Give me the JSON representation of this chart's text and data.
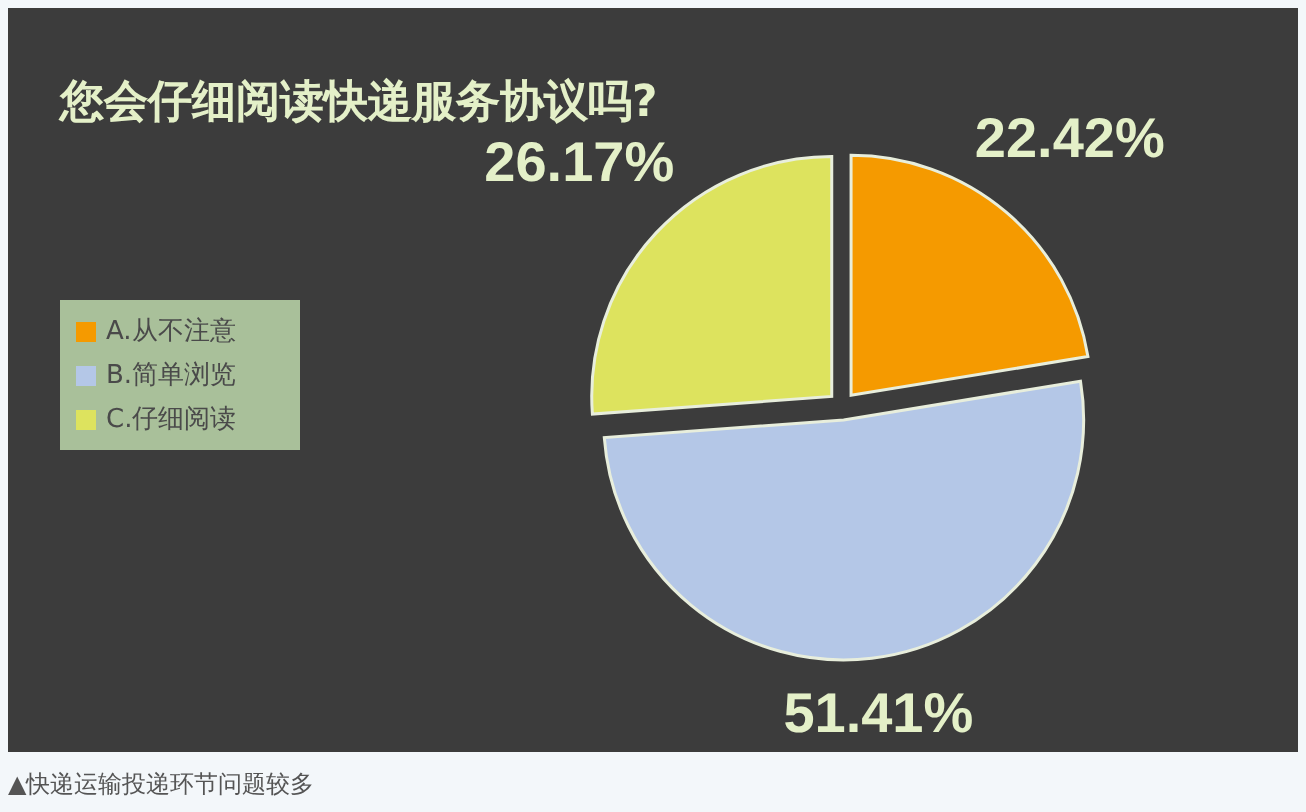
{
  "chart_data": {
    "type": "pie",
    "title": "您会仔细阅读快递服务协议吗?",
    "categories": [
      "A.从不注意",
      "B.简单浏览",
      "C.仔细阅读"
    ],
    "values": [
      22.42,
      51.41,
      26.17
    ],
    "colors": [
      "#f59a00",
      "#b4c7e7",
      "#dde35e"
    ],
    "value_labels": [
      "22.42%",
      "51.41%",
      "26.17%"
    ],
    "legend": "left",
    "annotations": [
      "▲快递运输投递环节问题较多"
    ]
  }
}
